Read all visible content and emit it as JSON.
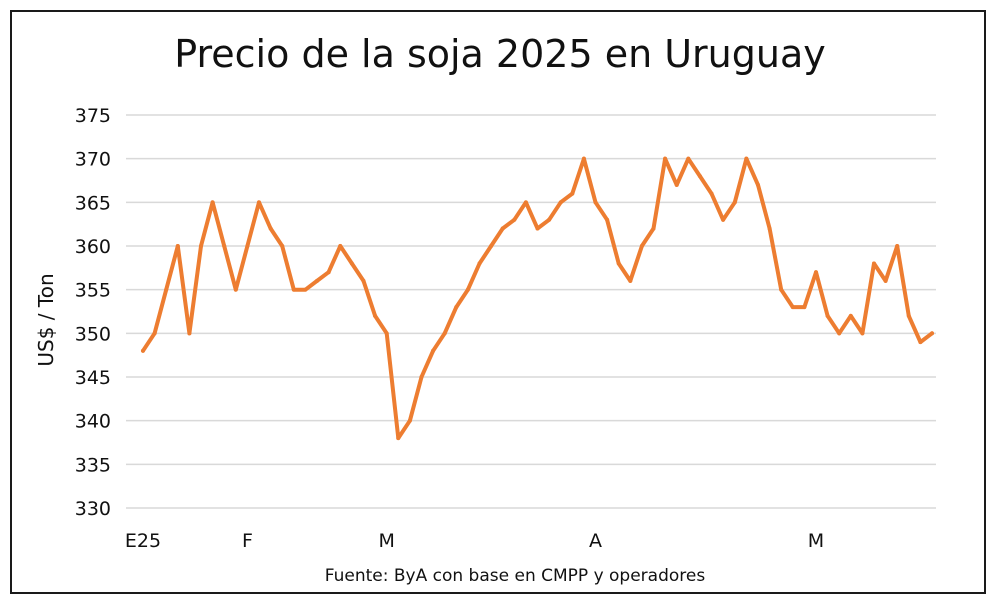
{
  "chart_data": {
    "type": "line",
    "title": "Precio de la soja 2025 en Uruguay",
    "ylabel": "US$ / Ton",
    "xlabel": "",
    "source": "Fuente: ByA con base en CMPP y operadores",
    "ylim": [
      330,
      375
    ],
    "yticks": [
      330,
      335,
      340,
      345,
      350,
      355,
      360,
      365,
      370,
      375
    ],
    "grid": true,
    "line_color": "#ED7D31",
    "grid_color": "#D9D9D9",
    "x_labels": [
      {
        "label": "E25",
        "index": 0
      },
      {
        "label": "F",
        "index": 9
      },
      {
        "label": "M",
        "index": 21
      },
      {
        "label": "A",
        "index": 39
      },
      {
        "label": "M",
        "index": 58
      }
    ],
    "series": [
      {
        "values": [
          348,
          350,
          355,
          360,
          350,
          360,
          365,
          360,
          355,
          360,
          365,
          362,
          360,
          355,
          355,
          356,
          357,
          360,
          358,
          356,
          352,
          350,
          338,
          340,
          345,
          348,
          350,
          353,
          355,
          358,
          360,
          362,
          363,
          365,
          362,
          363,
          365,
          366,
          370,
          365,
          363,
          358,
          356,
          360,
          362,
          370,
          367,
          370,
          368,
          366,
          363,
          365,
          370,
          367,
          362,
          355,
          353,
          353,
          357,
          352,
          350,
          352,
          350,
          358,
          356,
          360,
          352,
          349,
          350
        ]
      }
    ]
  }
}
